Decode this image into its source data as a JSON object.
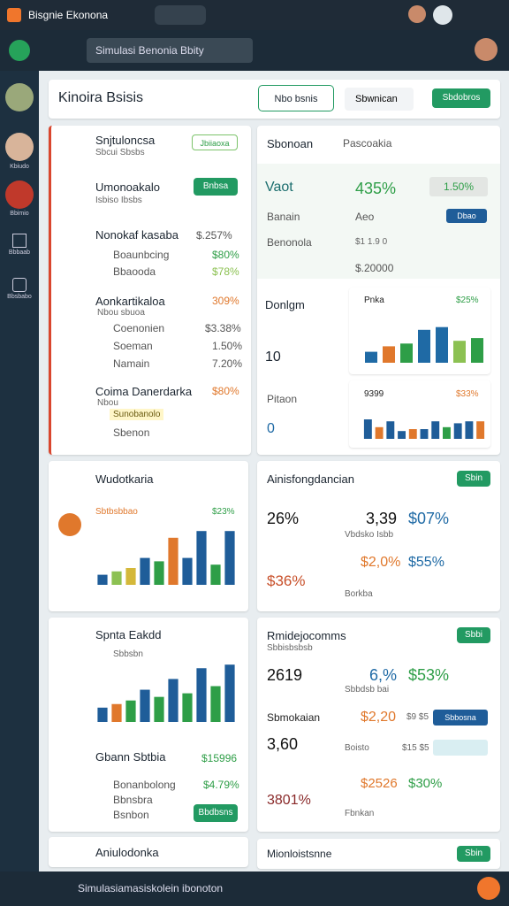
{
  "app": {
    "title": "Bisgnie Ekonona",
    "search": "Simulasi Benonia Bbity"
  },
  "sidebar": [
    "Kbiudo",
    "Bbimio",
    "Bbbaab",
    "Bbsbabo"
  ],
  "header": {
    "title": "Kinoira Bsisis",
    "button1": "Nbo bsnis",
    "search": "Sbwnican",
    "button2": "Sbdobros"
  },
  "left": {
    "item1": {
      "title": "Snjtuloncsa",
      "sub": "Sbcui Sbsbs",
      "tag": "Jbiiaoxa"
    },
    "item2": {
      "title": "Umonoakalo",
      "sub": "Isbiso Ibsbs",
      "button": "Bnbsa"
    },
    "item3": {
      "title": "Nonokaf kasaba",
      "value": "$.257%",
      "rows": [
        [
          "Boaunbcing",
          "$80%"
        ],
        [
          "Bbaooda",
          "$78%"
        ]
      ]
    },
    "item4": {
      "title": "Aonkartikaloa",
      "value": "309%",
      "sub": "Nbou sbuoa",
      "rows": [
        [
          "Coenonien",
          "$3.38%"
        ],
        [
          "Soeman",
          "1.50%"
        ],
        [
          "Namain",
          "7.20%"
        ]
      ]
    },
    "item5": {
      "title": "Coima Danerdarka",
      "value": "$80%",
      "sub": "Nbou",
      "tag": "Sunobanolo",
      "row": "Sbenon"
    },
    "card2": {
      "title": "Wudotkaria",
      "label": "Sbtbsbbao",
      "value": "$23%"
    },
    "card3": {
      "title": "Spnta Eakdd",
      "sub": "Sbbsbn"
    },
    "card4": {
      "title": "Gbann Sbtbia",
      "value": "$15996",
      "rows": [
        [
          "Bonanbolong",
          "$4.79%"
        ],
        [
          "Bbnsbra",
          ""
        ],
        [
          "Bsnbon",
          ""
        ]
      ],
      "button": "Bbdbsns"
    },
    "card5": {
      "title": "Aniulodonka"
    }
  },
  "right": {
    "panel": {
      "title": "Sbonoan",
      "sub": "Pascoakia",
      "r1": [
        "Vaot",
        "435%",
        "1.50%"
      ],
      "r2": [
        "Banain",
        "Aeo",
        "Dbao"
      ],
      "r3": [
        "Benonola",
        "$1 1.9 0"
      ],
      "r4": "$.20000",
      "l1": "Donlgm",
      "l2": "10",
      "l3": "Pitaon",
      "l4": "0",
      "c0": [
        "Pnka",
        "$25%"
      ],
      "c1": [
        "9399",
        "$33%"
      ]
    },
    "card2": {
      "title": "Ainisfongdancian",
      "button": "Sbin",
      "vals": [
        "26%",
        "3,39",
        "$07%"
      ],
      "sub": "Vbdsko Isbb",
      "vals2": [
        "$2,0%",
        "$55%"
      ],
      "big": "$36%",
      "foot": "Borkba"
    },
    "card3": {
      "title": "Rmidejocomms",
      "button": "Sbbi",
      "sub": "Sbbisbsbsb",
      "vals": [
        "2619",
        "6,%",
        "$53%"
      ],
      "sub2": "Sbbdsb bai",
      "r1": [
        "Sbmokaian",
        "$2,20",
        "$9 $5",
        "Sbbosna"
      ],
      "r2": [
        "3,60",
        "Boisto",
        "$15 $5"
      ],
      "r3": [
        "$2526",
        "$30%"
      ],
      "r4": [
        "3801%",
        "Fbnkan"
      ]
    },
    "card4": {
      "title": "Mionloistsnne",
      "button": "Sbin"
    }
  },
  "bottom": {
    "title": "Simulasiamasiskolein ibonoton"
  },
  "charts": [
    {
      "ylim": [
        0,
        100
      ],
      "values": [
        20,
        30,
        35,
        60,
        65,
        40,
        45
      ],
      "colors": [
        "#1f6aa5",
        "#e0782c",
        "#2e9e47",
        "#1f6aa5",
        "#1f6aa5",
        "#8cc152",
        "#2e9e47"
      ]
    },
    {
      "ylim": [
        0,
        100
      ],
      "values": [
        50,
        30,
        45,
        20,
        25,
        25,
        45,
        30,
        40,
        45,
        45
      ],
      "colors": [
        "#1f5d99",
        "#e0782c",
        "#1f5d99",
        "#1f5d99",
        "#e0782c",
        "#1f5d99",
        "#1f5d99",
        "#2e9e47",
        "#1f5d99",
        "#1f5d99",
        "#e0782c"
      ]
    },
    {
      "ylim": [
        0,
        100
      ],
      "values": [
        15,
        20,
        25,
        40,
        35,
        70,
        40,
        80,
        30,
        80
      ],
      "colors": [
        "#1f5d99",
        "#8cc152",
        "#d4b83a",
        "#1f5d99",
        "#2e9e47",
        "#e0782c",
        "#1f5d99",
        "#1f5d99",
        "#2e9e47",
        "#1f5d99"
      ]
    },
    {
      "ylim": [
        0,
        100
      ],
      "values": [
        20,
        25,
        30,
        45,
        35,
        60,
        40,
        75,
        50,
        80
      ],
      "colors": [
        "#1f5d99",
        "#e0782c",
        "#2e9e47",
        "#1f5d99",
        "#2e9e47",
        "#1f5d99",
        "#2e9e47",
        "#1f5d99",
        "#2e9e47",
        "#1f5d99"
      ]
    }
  ]
}
